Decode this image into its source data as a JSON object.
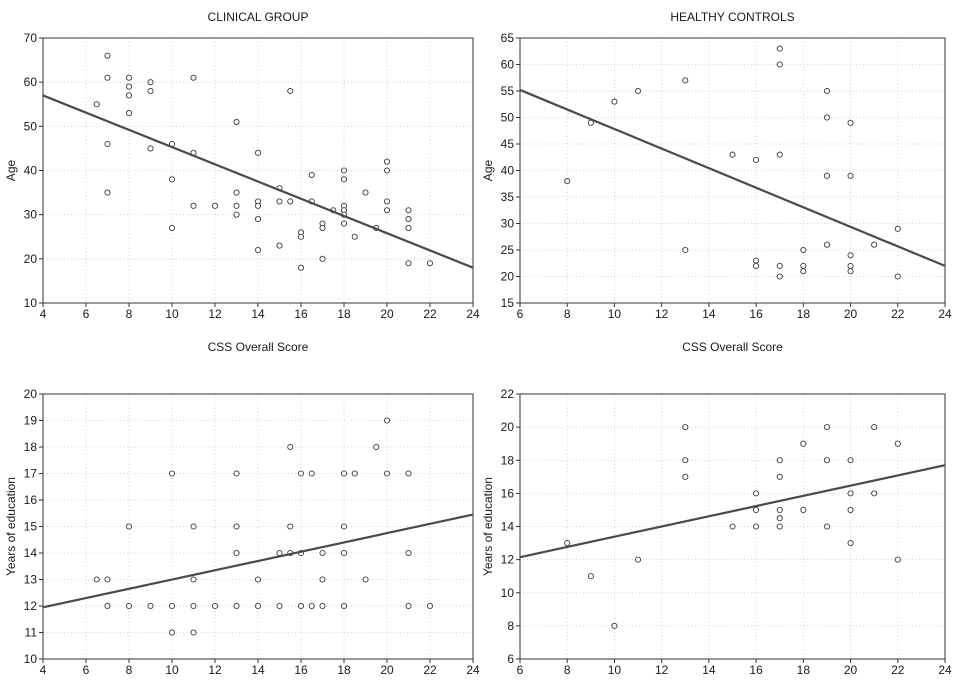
{
  "chart_data": [
    {
      "type": "scatter",
      "title": "CLINICAL GROUP",
      "xlabel": "CSS Overall Score",
      "ylabel": "Age",
      "xlim": [
        4,
        24
      ],
      "ylim": [
        10,
        70
      ],
      "xticks": [
        4,
        6,
        8,
        10,
        12,
        14,
        16,
        18,
        20,
        22,
        24
      ],
      "yticks": [
        10,
        20,
        30,
        40,
        50,
        60,
        70
      ],
      "grid": true,
      "points": [
        [
          6.5,
          55
        ],
        [
          7,
          66
        ],
        [
          7,
          61
        ],
        [
          7,
          46
        ],
        [
          7,
          35
        ],
        [
          8,
          61
        ],
        [
          8,
          59
        ],
        [
          8,
          57
        ],
        [
          8,
          53
        ],
        [
          9,
          60
        ],
        [
          9,
          58
        ],
        [
          9,
          45
        ],
        [
          10,
          46
        ],
        [
          10,
          38
        ],
        [
          10,
          27
        ],
        [
          11,
          61
        ],
        [
          11,
          44
        ],
        [
          11,
          32
        ],
        [
          12,
          32
        ],
        [
          13,
          51
        ],
        [
          13,
          35
        ],
        [
          13,
          32
        ],
        [
          13,
          30
        ],
        [
          14,
          44
        ],
        [
          14,
          33
        ],
        [
          14,
          32
        ],
        [
          14,
          29
        ],
        [
          14,
          22
        ],
        [
          15,
          36
        ],
        [
          15,
          33
        ],
        [
          15,
          23
        ],
        [
          15.5,
          58
        ],
        [
          15.5,
          33
        ],
        [
          16,
          26
        ],
        [
          16,
          25
        ],
        [
          16,
          18
        ],
        [
          16.5,
          39
        ],
        [
          16.5,
          33
        ],
        [
          17,
          28
        ],
        [
          17,
          27
        ],
        [
          17,
          20
        ],
        [
          17.5,
          31
        ],
        [
          18,
          40
        ],
        [
          18,
          38
        ],
        [
          18,
          32
        ],
        [
          18,
          31
        ],
        [
          18,
          30
        ],
        [
          18,
          28
        ],
        [
          18.5,
          25
        ],
        [
          19,
          35
        ],
        [
          19.5,
          27
        ],
        [
          20,
          42
        ],
        [
          20,
          40
        ],
        [
          20,
          33
        ],
        [
          20,
          31
        ],
        [
          21,
          31
        ],
        [
          21,
          29
        ],
        [
          21,
          27
        ],
        [
          21,
          19
        ],
        [
          22,
          19
        ]
      ],
      "regression": {
        "x": [
          4,
          24
        ],
        "y": [
          57,
          18
        ]
      }
    },
    {
      "type": "scatter",
      "title": "HEALTHY CONTROLS",
      "xlabel": "CSS Overall Score",
      "ylabel": "Age",
      "xlim": [
        6,
        24
      ],
      "ylim": [
        15,
        65
      ],
      "xticks": [
        6,
        8,
        10,
        12,
        14,
        16,
        18,
        20,
        22,
        24
      ],
      "yticks": [
        15,
        20,
        25,
        30,
        35,
        40,
        45,
        50,
        55,
        60,
        65
      ],
      "grid": true,
      "points": [
        [
          8,
          38
        ],
        [
          9,
          49
        ],
        [
          10,
          53
        ],
        [
          11,
          55
        ],
        [
          13,
          57
        ],
        [
          13,
          25
        ],
        [
          15,
          43
        ],
        [
          16,
          42
        ],
        [
          16,
          23
        ],
        [
          16,
          22
        ],
        [
          17,
          63
        ],
        [
          17,
          60
        ],
        [
          17,
          43
        ],
        [
          17,
          22
        ],
        [
          17,
          20
        ],
        [
          18,
          25
        ],
        [
          18,
          22
        ],
        [
          18,
          21
        ],
        [
          19,
          55
        ],
        [
          19,
          50
        ],
        [
          19,
          39
        ],
        [
          19,
          26
        ],
        [
          20,
          49
        ],
        [
          20,
          39
        ],
        [
          20,
          24
        ],
        [
          20,
          22
        ],
        [
          20,
          21
        ],
        [
          21,
          26
        ],
        [
          22,
          29
        ],
        [
          22,
          20
        ]
      ],
      "regression": {
        "x": [
          6,
          24
        ],
        "y": [
          55.2,
          22
        ]
      }
    },
    {
      "type": "scatter",
      "title": "",
      "xlabel": "",
      "ylabel": "Years of education",
      "xlim": [
        4,
        24
      ],
      "ylim": [
        10,
        20
      ],
      "xticks": [
        4,
        6,
        8,
        10,
        12,
        14,
        16,
        18,
        20,
        22,
        24
      ],
      "yticks": [
        10,
        11,
        12,
        13,
        14,
        15,
        16,
        17,
        18,
        19,
        20
      ],
      "grid": true,
      "points": [
        [
          6.5,
          13
        ],
        [
          7,
          13
        ],
        [
          7,
          12
        ],
        [
          8,
          15
        ],
        [
          8,
          12
        ],
        [
          9,
          12
        ],
        [
          10,
          17
        ],
        [
          10,
          12
        ],
        [
          10,
          11
        ],
        [
          11,
          15
        ],
        [
          11,
          13
        ],
        [
          11,
          12
        ],
        [
          11,
          11
        ],
        [
          12,
          12
        ],
        [
          13,
          17
        ],
        [
          13,
          15
        ],
        [
          13,
          14
        ],
        [
          13,
          12
        ],
        [
          14,
          13
        ],
        [
          14,
          12
        ],
        [
          15,
          14
        ],
        [
          15,
          12
        ],
        [
          15.5,
          18
        ],
        [
          15.5,
          15
        ],
        [
          15.5,
          14
        ],
        [
          16,
          17
        ],
        [
          16,
          14
        ],
        [
          16,
          12
        ],
        [
          16.5,
          17
        ],
        [
          16.5,
          12
        ],
        [
          17,
          14
        ],
        [
          17,
          13
        ],
        [
          17,
          12
        ],
        [
          18,
          17
        ],
        [
          18,
          15
        ],
        [
          18,
          14
        ],
        [
          18,
          12
        ],
        [
          18.5,
          17
        ],
        [
          19,
          13
        ],
        [
          19.5,
          18
        ],
        [
          20,
          19
        ],
        [
          20,
          17
        ],
        [
          21,
          17
        ],
        [
          21,
          14
        ],
        [
          21,
          12
        ],
        [
          22,
          12
        ]
      ],
      "regression": {
        "x": [
          4,
          24
        ],
        "y": [
          11.95,
          15.45
        ]
      }
    },
    {
      "type": "scatter",
      "title": "",
      "xlabel": "",
      "ylabel": "Years of education",
      "xlim": [
        6,
        24
      ],
      "ylim": [
        6,
        22
      ],
      "xticks": [
        6,
        8,
        10,
        12,
        14,
        16,
        18,
        20,
        22,
        24
      ],
      "yticks": [
        6,
        8,
        10,
        12,
        14,
        16,
        18,
        20,
        22
      ],
      "grid": true,
      "points": [
        [
          8,
          13
        ],
        [
          9,
          11
        ],
        [
          10,
          8
        ],
        [
          11,
          12
        ],
        [
          13,
          20
        ],
        [
          13,
          18
        ],
        [
          13,
          17
        ],
        [
          15,
          14
        ],
        [
          16,
          16
        ],
        [
          16,
          15
        ],
        [
          16,
          14
        ],
        [
          17,
          18
        ],
        [
          17,
          17
        ],
        [
          17,
          15
        ],
        [
          17,
          14.5
        ],
        [
          17,
          14
        ],
        [
          18,
          19
        ],
        [
          18,
          15
        ],
        [
          19,
          20
        ],
        [
          19,
          18
        ],
        [
          19,
          14
        ],
        [
          20,
          18
        ],
        [
          20,
          16
        ],
        [
          20,
          15
        ],
        [
          20,
          13
        ],
        [
          21,
          20
        ],
        [
          21,
          16
        ],
        [
          22,
          19
        ],
        [
          22,
          12
        ]
      ],
      "regression": {
        "x": [
          6,
          24
        ],
        "y": [
          12.15,
          17.7
        ]
      }
    }
  ]
}
